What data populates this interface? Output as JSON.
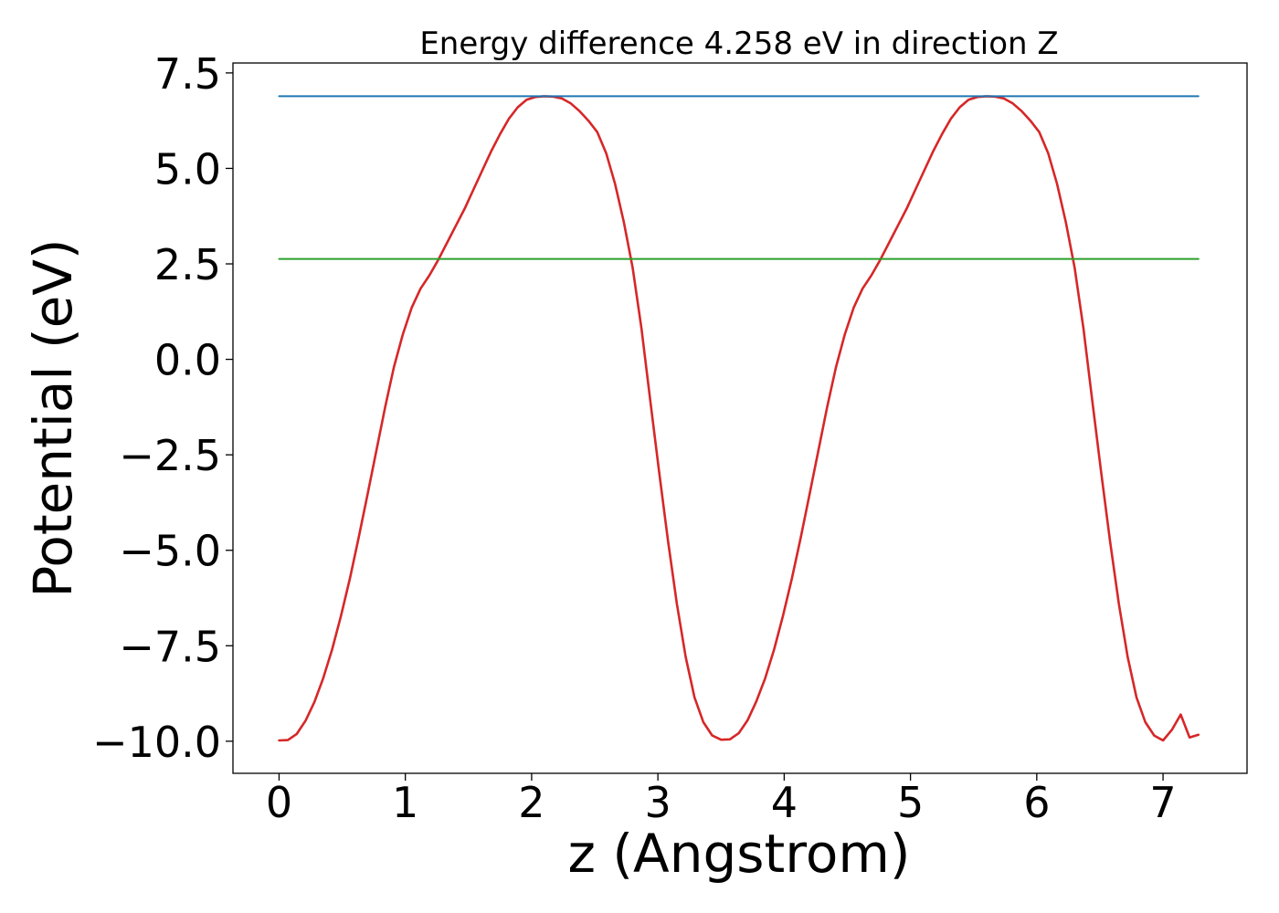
{
  "chart_data": {
    "type": "line",
    "title": "Energy difference 4.258 eV in direction Z",
    "xlabel": "z (Angstrom)",
    "ylabel": "Potential (eV)",
    "xlim": [
      -0.365,
      7.665
    ],
    "ylim": [
      -10.84,
      7.76
    ],
    "xticks": [
      0,
      1,
      2,
      3,
      4,
      5,
      6,
      7
    ],
    "xtick_labels": [
      "0",
      "1",
      "2",
      "3",
      "4",
      "5",
      "6",
      "7"
    ],
    "yticks": [
      7.5,
      5.0,
      2.5,
      0.0,
      -2.5,
      -5.0,
      -7.5,
      -10.0
    ],
    "ytick_labels": [
      "7.5",
      "5.0",
      "2.5",
      "0.0",
      "−2.5",
      "−5.0",
      "−7.5",
      "−10.0"
    ],
    "grid": false,
    "series": [
      {
        "color": "#d62728",
        "x": [
          0.0,
          0.07,
          0.14,
          0.21,
          0.28,
          0.35,
          0.42,
          0.49,
          0.56,
          0.63,
          0.7,
          0.77,
          0.84,
          0.91,
          0.98,
          1.05,
          1.12,
          1.19,
          1.26,
          1.33,
          1.4,
          1.47,
          1.54,
          1.61,
          1.68,
          1.75,
          1.82,
          1.89,
          1.96,
          2.03,
          2.1,
          2.17,
          2.24,
          2.31,
          2.38,
          2.45,
          2.52,
          2.59,
          2.66,
          2.73,
          2.8,
          2.87,
          2.94,
          3.01,
          3.08,
          3.15,
          3.22,
          3.29,
          3.36,
          3.43,
          3.5,
          3.57,
          3.64,
          3.71,
          3.78,
          3.85,
          3.92,
          3.99,
          4.06,
          4.13,
          4.2,
          4.27,
          4.34,
          4.41,
          4.48,
          4.55,
          4.62,
          4.69,
          4.76,
          4.83,
          4.9,
          4.97,
          5.04,
          5.11,
          5.18,
          5.25,
          5.32,
          5.39,
          5.46,
          5.53,
          5.6,
          5.67,
          5.74,
          5.81,
          5.88,
          5.95,
          6.02,
          6.09,
          6.16,
          6.23,
          6.3,
          6.37,
          6.44,
          6.51,
          6.58,
          6.65,
          6.72,
          6.79,
          6.86,
          6.93,
          7.0,
          7.07,
          7.14,
          7.21,
          7.28
        ],
        "y": [
          -9.98,
          -9.97,
          -9.81,
          -9.46,
          -8.97,
          -8.35,
          -7.6,
          -6.72,
          -5.75,
          -4.68,
          -3.55,
          -2.4,
          -1.25,
          -0.2,
          0.65,
          1.35,
          1.85,
          2.2,
          2.6,
          3.05,
          3.5,
          3.95,
          4.45,
          4.95,
          5.45,
          5.9,
          6.3,
          6.6,
          6.8,
          6.87,
          6.89,
          6.88,
          6.83,
          6.7,
          6.5,
          6.25,
          5.95,
          5.4,
          4.6,
          3.6,
          2.4,
          0.8,
          -1.1,
          -2.95,
          -4.75,
          -6.4,
          -7.8,
          -8.85,
          -9.5,
          -9.85,
          -9.96,
          -9.95,
          -9.79,
          -9.45,
          -8.95,
          -8.35,
          -7.6,
          -6.72,
          -5.75,
          -4.68,
          -3.55,
          -2.4,
          -1.25,
          -0.2,
          0.65,
          1.35,
          1.85,
          2.2,
          2.6,
          3.05,
          3.5,
          3.95,
          4.45,
          4.95,
          5.45,
          5.9,
          6.3,
          6.6,
          6.8,
          6.87,
          6.89,
          6.88,
          6.83,
          6.7,
          6.5,
          6.25,
          5.95,
          5.4,
          4.6,
          3.6,
          2.4,
          0.8,
          -1.1,
          -2.95,
          -4.75,
          -6.4,
          -7.8,
          -8.85,
          -9.5,
          -9.85,
          -9.98,
          -9.7,
          -9.3,
          -9.9,
          -9.83
        ]
      },
      {
        "color": "#1f77b4",
        "x": [
          0.0,
          7.28
        ],
        "y": [
          6.89,
          6.89
        ]
      },
      {
        "color": "#2ca02c",
        "x": [
          0.0,
          7.28
        ],
        "y": [
          2.63,
          2.63
        ]
      }
    ]
  }
}
